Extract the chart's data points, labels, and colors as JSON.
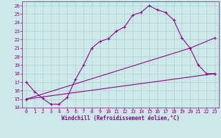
{
  "xlabel": "Windchill (Refroidissement éolien,°C)",
  "xlim": [
    -0.5,
    23.5
  ],
  "ylim": [
    14,
    26.5
  ],
  "xticks": [
    0,
    1,
    2,
    3,
    4,
    5,
    6,
    7,
    8,
    9,
    10,
    11,
    12,
    13,
    14,
    15,
    16,
    17,
    18,
    19,
    20,
    21,
    22,
    23
  ],
  "yticks": [
    14,
    15,
    16,
    17,
    18,
    19,
    20,
    21,
    22,
    23,
    24,
    25,
    26
  ],
  "background_color": "#cce8e8",
  "line_color": "#880088",
  "grid_color": "#b0cccc",
  "line1_x": [
    0,
    1,
    2,
    3,
    4,
    5,
    6,
    7,
    8,
    9,
    10,
    11,
    12,
    13,
    14,
    15,
    16,
    17,
    18,
    19,
    20,
    21,
    22,
    23
  ],
  "line1_y": [
    17.0,
    15.9,
    15.1,
    14.4,
    14.4,
    15.2,
    17.3,
    19.0,
    21.0,
    21.8,
    22.1,
    23.0,
    23.5,
    24.9,
    25.2,
    26.0,
    25.5,
    25.2,
    24.3,
    22.2,
    21.0,
    19.0,
    18.0,
    18.0
  ],
  "line2_x": [
    0,
    20,
    23
  ],
  "line2_y": [
    15.0,
    21.0,
    22.2
  ],
  "line3_x": [
    0,
    23
  ],
  "line3_y": [
    15.0,
    18.0
  ],
  "figsize": [
    3.2,
    2.0
  ],
  "dpi": 100,
  "tick_fontsize": 5.0,
  "xlabel_fontsize": 5.5
}
